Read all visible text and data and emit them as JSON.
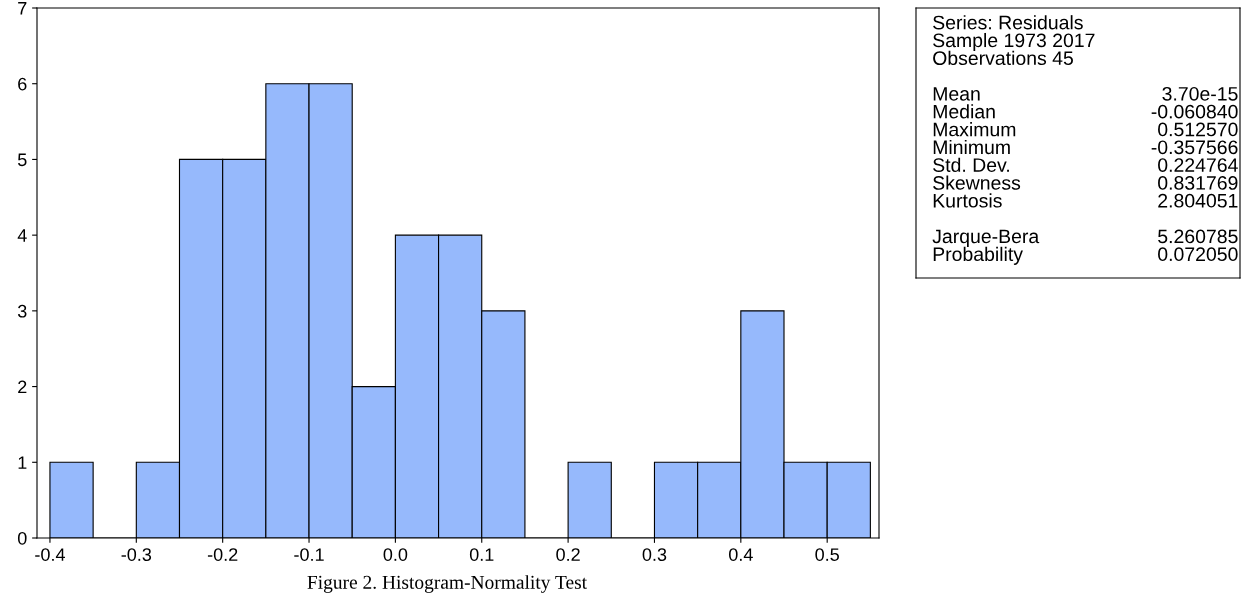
{
  "chart_data": [
    {
      "type": "histogram",
      "bins": [
        -0.4,
        -0.35,
        -0.3,
        -0.25,
        -0.2,
        -0.15,
        -0.1,
        -0.05,
        0.0,
        0.05,
        0.1,
        0.15,
        0.2,
        0.25,
        0.3,
        0.35,
        0.4,
        0.45,
        0.5,
        0.55
      ],
      "values": [
        1,
        0,
        1,
        5,
        5,
        6,
        6,
        2,
        4,
        4,
        3,
        0,
        1,
        0,
        1,
        1,
        3,
        1,
        1
      ],
      "color": "#96b9fc",
      "xlim": [
        -0.415,
        0.56
      ],
      "xticks": [
        -0.4,
        -0.3,
        -0.2,
        -0.1,
        {
          "value": 0.0,
          "label": "0.0"
        },
        0.1,
        0.2,
        0.3,
        0.4,
        0.5
      ],
      "ylim": [
        0,
        7
      ],
      "yticks": [
        0,
        1,
        2,
        3,
        4,
        5,
        6,
        7
      ],
      "grid": false,
      "annotations": [
        "Figure 2. Histogram-Normality Test"
      ]
    },
    {
      "type": "other",
      "annotations": [
        "Series: Residuals",
        "Sample 1973 2017",
        "Observations 45",
        "Mean\t3.70e-15",
        "Median\t-0.060840",
        "Maximum\t0.512570",
        "Minimum\t-0.357566",
        "Std. Dev.\t0.224764",
        "Skewness\t0.831769",
        "Kurtosis\t2.804051",
        "Jarque-Bera\t5.260785",
        "Probability\t0.072050"
      ]
    }
  ]
}
